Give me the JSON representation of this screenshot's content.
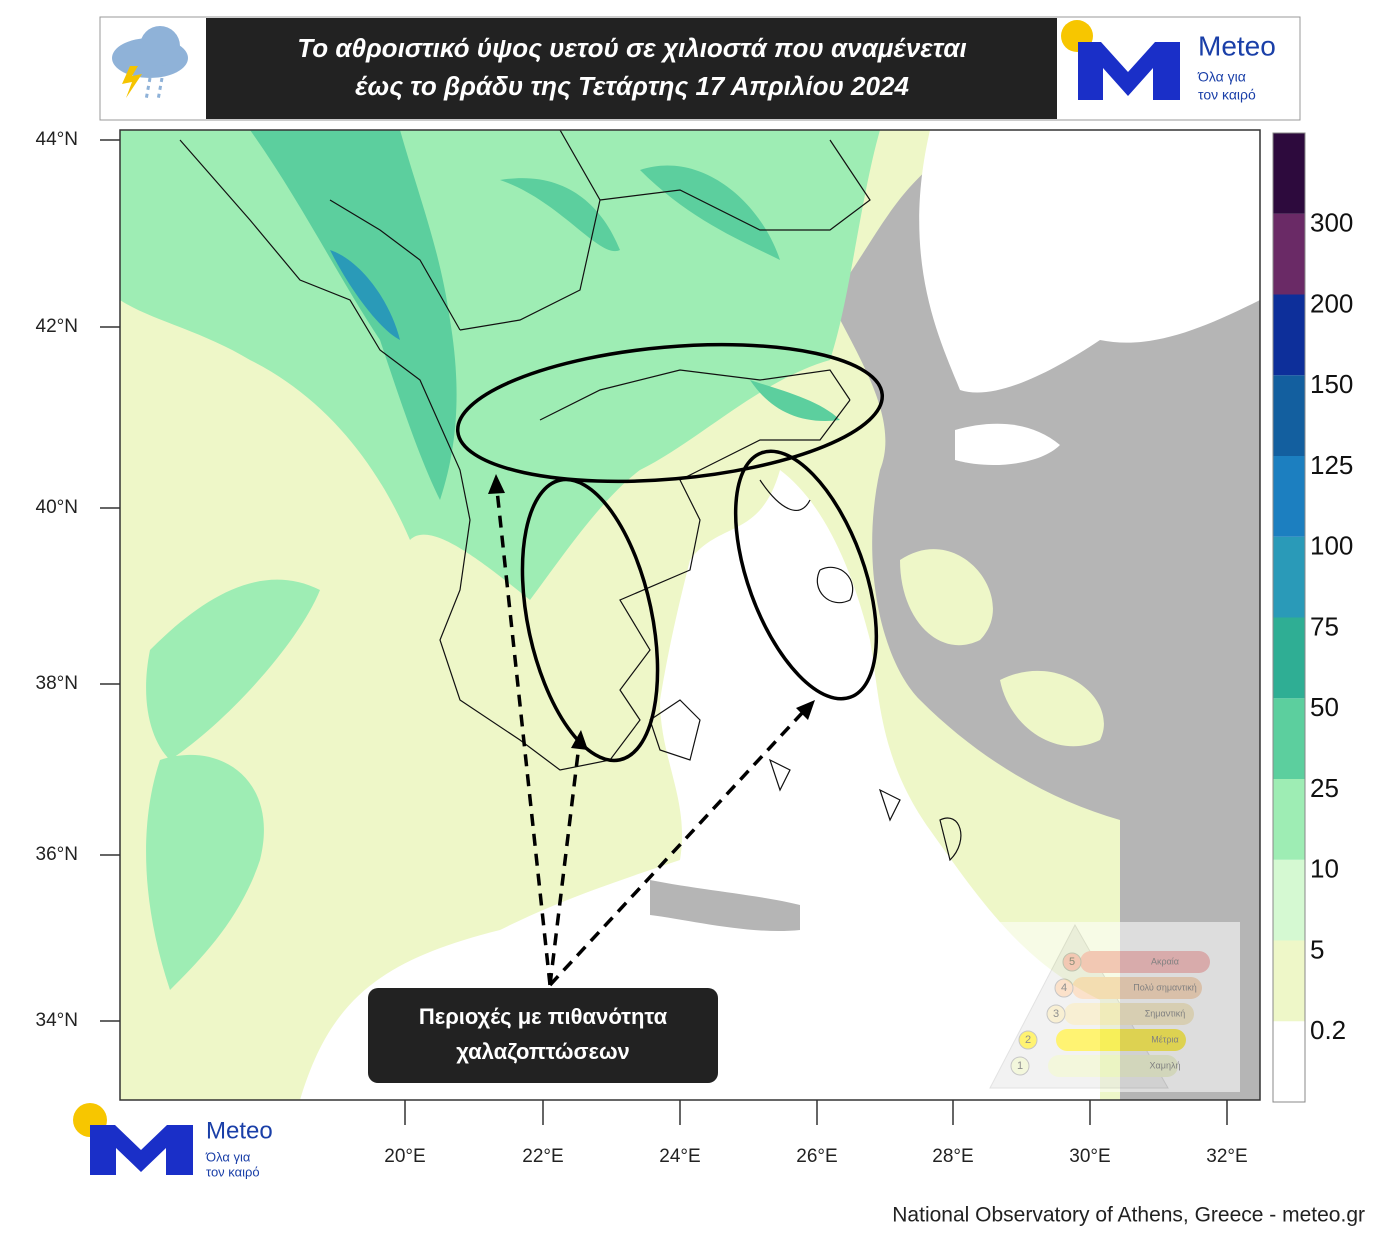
{
  "header": {
    "title_lines": [
      "Το αθροιστικό ύψος υετού σε χιλιοστά που αναμένεται",
      "έως το βράδυ της Τετάρτης 17 Απριλίου 2024"
    ],
    "logo": {
      "name": "Meteo",
      "tagline": [
        "Όλα για",
        "τον καιρό"
      ]
    }
  },
  "map": {
    "lat_labels": [
      "44°N",
      "42°N",
      "40°N",
      "38°N",
      "36°N",
      "34°N"
    ],
    "lon_labels": [
      "20°E",
      "22°E",
      "24°E",
      "26°E",
      "28°E",
      "30°E",
      "32°E"
    ],
    "colorbar": {
      "labels": [
        "0.2",
        "5",
        "10",
        "25",
        "50",
        "75",
        "100",
        "125",
        "150",
        "200",
        "300"
      ],
      "colors": [
        "#ffffff",
        "#eef7c8",
        "#d5f9d2",
        "#9eedb4",
        "#5ccf9e",
        "#2fae94",
        "#2a9ab8",
        "#1c7fc0",
        "#135f9f",
        "#0d2f9a",
        "#6a2a66",
        "#2d0a3d"
      ]
    },
    "annotation": {
      "lines": [
        "Περιοχές με πιθανότητα",
        "χαλαζοπτώσεων"
      ]
    },
    "inset": {
      "levels": [
        {
          "number": "5",
          "label": "Ακραία"
        },
        {
          "number": "4",
          "label": "Πολύ σημαντική"
        },
        {
          "number": "3",
          "label": "Σημαντική"
        },
        {
          "number": "2",
          "label": "Μέτρια"
        },
        {
          "number": "1",
          "label": "Χαμηλή"
        }
      ]
    }
  },
  "footer_logo": {
    "name": "Meteo",
    "tagline": [
      "Όλα για",
      "τον καιρό"
    ]
  },
  "footer": {
    "credit": "National Observatory of Athens, Greece - meteo.gr"
  }
}
